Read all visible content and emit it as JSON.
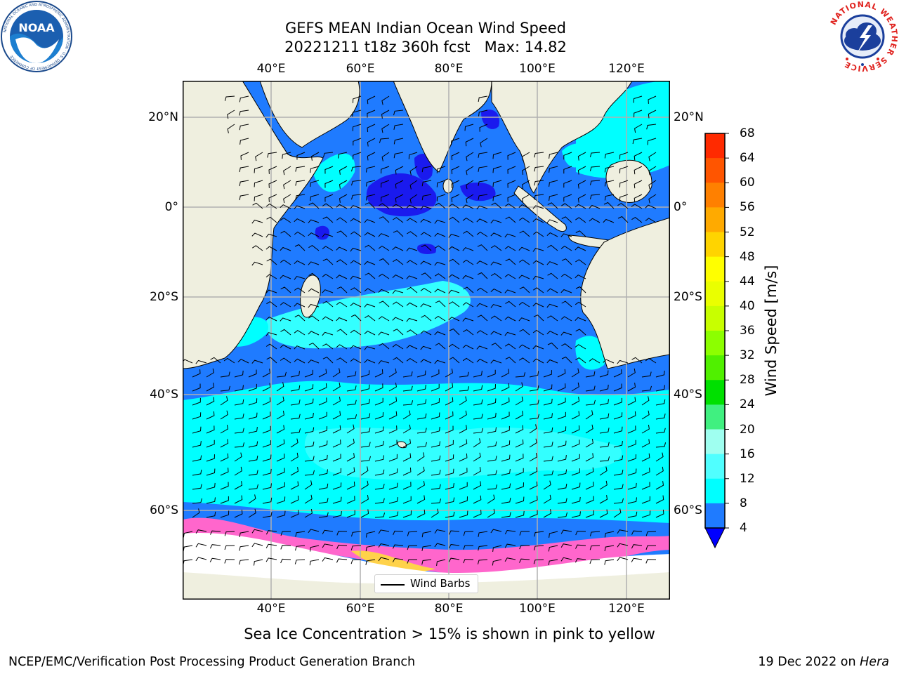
{
  "title": {
    "line1": "GEFS MEAN Indian Ocean Wind Speed",
    "line2": "20221211 t18z 360h fcst   Max: 14.82"
  },
  "map": {
    "lon_ticks": [
      "40°E",
      "60°E",
      "80°E",
      "100°E",
      "120°E"
    ],
    "lat_ticks": [
      "20°N",
      "0°",
      "20°S",
      "40°S",
      "60°S"
    ],
    "extent_lon": [
      20,
      130
    ],
    "extent_lat": [
      -73,
      28
    ],
    "ocean_colors": {
      "4-8": "#1f7bff",
      "8-12": "#00ffff",
      "12-16": "#33ffff",
      "below-4": "#1a1aee",
      "land": "#efefdf",
      "sea-ice": "#ff66cc",
      "ice-shelf": "#ffffff"
    }
  },
  "colorbar": {
    "label": "Wind Speed [m/s]",
    "ticks": [
      "68",
      "64",
      "60",
      "56",
      "52",
      "48",
      "44",
      "40",
      "36",
      "32",
      "28",
      "24",
      "20",
      "16",
      "12",
      "8",
      "4"
    ],
    "colors": [
      "#ff0000",
      "#ff2a00",
      "#ff5500",
      "#ff8000",
      "#ffaa00",
      "#ffd400",
      "#ffff00",
      "#eaff00",
      "#c8ff00",
      "#8cff00",
      "#50f000",
      "#00e000",
      "#40f080",
      "#9ffff0",
      "#50ffff",
      "#00ffff",
      "#1f7bff"
    ],
    "extend_color": "#0000ff"
  },
  "legend": {
    "label": "Wind Barbs"
  },
  "caption": "Sea Ice Concentration > 15% is shown in pink to yellow",
  "footer": {
    "left": "NCEP/EMC/Verification Post Processing Product Generation Branch",
    "date": "19 Dec 2022 on ",
    "machine": "Hera"
  },
  "logos": {
    "noaa": {
      "text": "NOAA",
      "ring": "NATIONAL OCEANIC AND ATMOSPHERIC ADMINISTRATION · U.S. DEPARTMENT OF COMMERCE"
    },
    "nws": {
      "ring": "NATIONAL WEATHER SERVICE"
    }
  }
}
